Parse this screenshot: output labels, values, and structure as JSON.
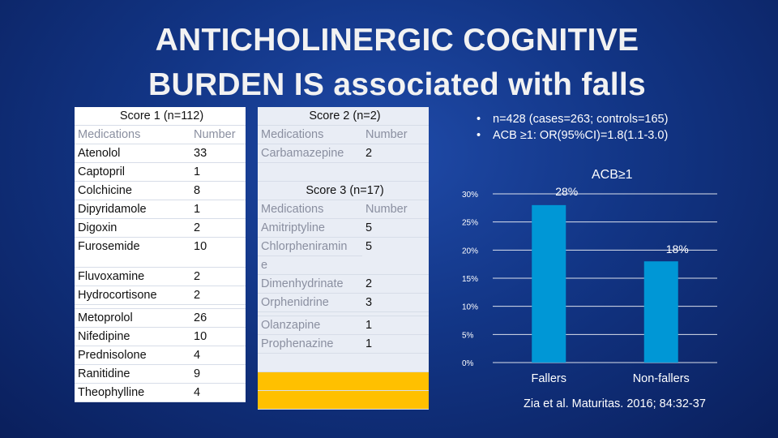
{
  "title": "ANTICHOLINERGIC COGNITIVE BURDEN IS associated with falls",
  "score1": {
    "header": "Score 1 (n=112)",
    "col_med": "Medications",
    "col_num": "Number",
    "rows": [
      {
        "med": "Atenolol",
        "num": "33"
      },
      {
        "med": "Captopril",
        "num": "1"
      },
      {
        "med": "Colchicine",
        "num": "8"
      },
      {
        "med": "Dipyridamole",
        "num": "1"
      },
      {
        "med": "Digoxin",
        "num": "2"
      },
      {
        "med": "Furosemide",
        "num": "10"
      },
      {
        "med": "Fluvoxamine",
        "num": "2"
      },
      {
        "med": "Hydrocortisone",
        "num": "2"
      },
      {
        "med": "Metoprolol",
        "num": "26"
      },
      {
        "med": "Nifedipine",
        "num": "10"
      },
      {
        "med": "Prednisolone",
        "num": "4"
      },
      {
        "med": "Ranitidine",
        "num": "9"
      },
      {
        "med": "Theophylline",
        "num": "4"
      }
    ]
  },
  "score2": {
    "header": "Score 2 (n=2)",
    "col_med": "Medications",
    "col_num": "Number",
    "rows": [
      {
        "med": "Carbamazepine",
        "num": "2"
      }
    ]
  },
  "score3": {
    "header": "Score 3 (n=17)",
    "col_med": "Medications",
    "col_num": "Number",
    "rows": [
      {
        "med": "Amitriptyline",
        "num": "5"
      },
      {
        "med": "Chlorpheniramin",
        "med2": "e",
        "num": "5"
      },
      {
        "med": "Dimenhydrinate",
        "num": "2"
      },
      {
        "med": "Orphenidrine",
        "num": "3"
      },
      {
        "med": "Olanzapine",
        "num": "1"
      },
      {
        "med": "Prophenazine",
        "num": "1"
      }
    ]
  },
  "bullets": [
    "n=428 (cases=263; controls=165)",
    "ACB ≥1: OR(95%CI)=1.8(1.1-3.0)"
  ],
  "chart_data": {
    "type": "bar",
    "title": "ACB≥1",
    "categories": [
      "Fallers",
      "Non-fallers"
    ],
    "values": [
      28,
      18
    ],
    "data_labels": [
      "28%",
      "18%"
    ],
    "ylim": [
      0,
      30
    ],
    "yticks": [
      "0%",
      "5%",
      "10%",
      "15%",
      "20%",
      "25%",
      "30%"
    ],
    "bar_color": "#0097d6",
    "grid": true
  },
  "citation": "Zia et al. Maturitas. 2016; 84:32-37"
}
